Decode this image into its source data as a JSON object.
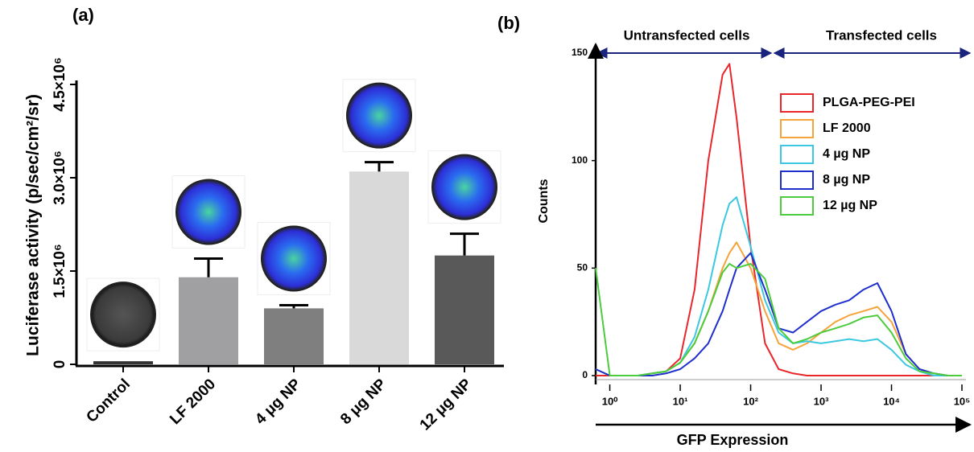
{
  "chart_data": [
    {
      "type": "bar",
      "panel": "(a)",
      "y_label": "Luciferase activity (p/sec/cm²/sr)",
      "categories": [
        "Control",
        "LF 2000",
        "4 μg NP",
        "8 μg NP",
        "12 μg NP"
      ],
      "values": [
        50000,
        1400000,
        900000,
        3100000,
        1750000
      ],
      "errors": [
        0,
        300000,
        50000,
        150000,
        350000
      ],
      "colors": [
        "#333333",
        "#a0a0a2",
        "#7f7f7f",
        "#d9d9d9",
        "#595959"
      ],
      "ylim": [
        0,
        4500000
      ],
      "yticks": [
        0,
        {
          "value": 1500000,
          "label": "1.5×10⁶"
        },
        {
          "value": 3000000,
          "label": "3.0×10⁶"
        },
        {
          "value": 4500000,
          "label": "4.5×10⁶"
        }
      ]
    },
    {
      "type": "line",
      "panel": "(b)",
      "x_label": "GFP Expression",
      "y_label": "Counts",
      "annotations": [
        "Untransfected cells",
        "Transfected cells"
      ],
      "x_scale": "log",
      "x": [
        0.63,
        1,
        1.6,
        2.5,
        4,
        6.3,
        10,
        16,
        25,
        40,
        50,
        63,
        100,
        160,
        250,
        400,
        630,
        1000,
        1600,
        2500,
        4000,
        6300,
        10000,
        16000,
        25000,
        40000,
        63000,
        100000
      ],
      "series": [
        {
          "name": "PLGA-PEG-PEI",
          "color": "#e8262b",
          "values": [
            0,
            0,
            0,
            0,
            1,
            2,
            8,
            40,
            100,
            140,
            145,
            120,
            60,
            15,
            3,
            1,
            0,
            0,
            0,
            0,
            0,
            0,
            0,
            0,
            0,
            0,
            0,
            0
          ]
        },
        {
          "name": "LF 2000",
          "color": "#f5a33a",
          "values": [
            3,
            0,
            0,
            0,
            1,
            2,
            6,
            15,
            30,
            50,
            57,
            62,
            50,
            30,
            15,
            12,
            15,
            20,
            25,
            28,
            30,
            32,
            25,
            10,
            3,
            1,
            0,
            0
          ]
        },
        {
          "name": "4 µg NP",
          "color": "#3cc8e0",
          "values": [
            3,
            0,
            0,
            0,
            1,
            2,
            6,
            18,
            40,
            70,
            80,
            83,
            60,
            35,
            20,
            15,
            16,
            15,
            16,
            17,
            16,
            17,
            12,
            5,
            2,
            0,
            0,
            0
          ]
        },
        {
          "name": "8 µg NP",
          "color": "#1f2fcc",
          "values": [
            3,
            0,
            0,
            0,
            0,
            1,
            3,
            8,
            15,
            30,
            40,
            50,
            57,
            40,
            22,
            20,
            25,
            30,
            33,
            35,
            40,
            43,
            30,
            10,
            3,
            1,
            0,
            0
          ]
        },
        {
          "name": "12 µg NP",
          "color": "#4ccc3c",
          "values": [
            50,
            0,
            0,
            0,
            1,
            2,
            6,
            15,
            30,
            48,
            52,
            50,
            52,
            45,
            22,
            15,
            17,
            20,
            22,
            24,
            27,
            28,
            20,
            8,
            2,
            1,
            0,
            0
          ]
        }
      ],
      "xlim": [
        0.63,
        100000
      ],
      "ylim": [
        0,
        150
      ],
      "xticks": [
        {
          "value": 1,
          "label": "10⁰"
        },
        {
          "value": 10,
          "label": "10¹"
        },
        {
          "value": 100,
          "label": "10²"
        },
        {
          "value": 1000,
          "label": "10³"
        },
        {
          "value": 10000,
          "label": "10⁴"
        },
        {
          "value": 100000,
          "label": "10⁵"
        }
      ],
      "yticks": [
        0,
        50,
        100,
        150
      ],
      "legend": "upper right"
    }
  ]
}
